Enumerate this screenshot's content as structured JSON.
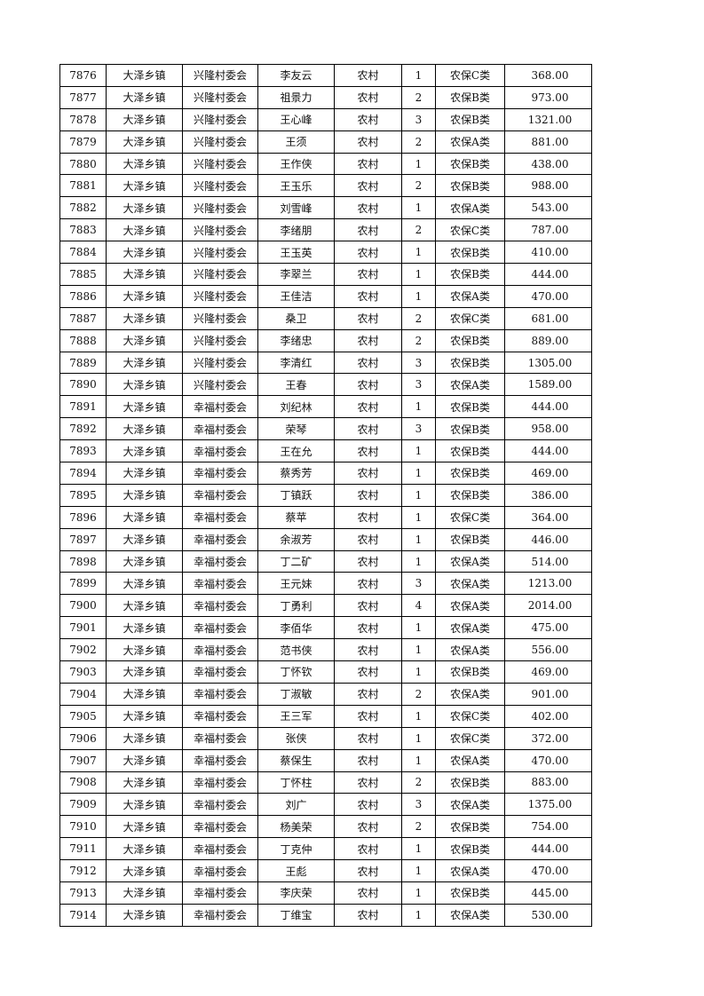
{
  "table": {
    "rows": [
      [
        "7876",
        "大泽乡镇",
        "兴隆村委会",
        "李友云",
        "农村",
        "1",
        "农保C类",
        "368.00"
      ],
      [
        "7877",
        "大泽乡镇",
        "兴隆村委会",
        "祖景力",
        "农村",
        "2",
        "农保B类",
        "973.00"
      ],
      [
        "7878",
        "大泽乡镇",
        "兴隆村委会",
        "王心峰",
        "农村",
        "3",
        "农保B类",
        "1321.00"
      ],
      [
        "7879",
        "大泽乡镇",
        "兴隆村委会",
        "王须",
        "农村",
        "2",
        "农保A类",
        "881.00"
      ],
      [
        "7880",
        "大泽乡镇",
        "兴隆村委会",
        "王作侠",
        "农村",
        "1",
        "农保B类",
        "438.00"
      ],
      [
        "7881",
        "大泽乡镇",
        "兴隆村委会",
        "王玉乐",
        "农村",
        "2",
        "农保B类",
        "988.00"
      ],
      [
        "7882",
        "大泽乡镇",
        "兴隆村委会",
        "刘雪峰",
        "农村",
        "1",
        "农保A类",
        "543.00"
      ],
      [
        "7883",
        "大泽乡镇",
        "兴隆村委会",
        "李绪朋",
        "农村",
        "2",
        "农保C类",
        "787.00"
      ],
      [
        "7884",
        "大泽乡镇",
        "兴隆村委会",
        "王玉英",
        "农村",
        "1",
        "农保B类",
        "410.00"
      ],
      [
        "7885",
        "大泽乡镇",
        "兴隆村委会",
        "李翠兰",
        "农村",
        "1",
        "农保B类",
        "444.00"
      ],
      [
        "7886",
        "大泽乡镇",
        "兴隆村委会",
        "王佳洁",
        "农村",
        "1",
        "农保A类",
        "470.00"
      ],
      [
        "7887",
        "大泽乡镇",
        "兴隆村委会",
        "桑卫",
        "农村",
        "2",
        "农保C类",
        "681.00"
      ],
      [
        "7888",
        "大泽乡镇",
        "兴隆村委会",
        "李绪忠",
        "农村",
        "2",
        "农保B类",
        "889.00"
      ],
      [
        "7889",
        "大泽乡镇",
        "兴隆村委会",
        "李清红",
        "农村",
        "3",
        "农保B类",
        "1305.00"
      ],
      [
        "7890",
        "大泽乡镇",
        "兴隆村委会",
        "王春",
        "农村",
        "3",
        "农保A类",
        "1589.00"
      ],
      [
        "7891",
        "大泽乡镇",
        "幸福村委会",
        "刘纪林",
        "农村",
        "1",
        "农保B类",
        "444.00"
      ],
      [
        "7892",
        "大泽乡镇",
        "幸福村委会",
        "荣琴",
        "农村",
        "3",
        "农保B类",
        "958.00"
      ],
      [
        "7893",
        "大泽乡镇",
        "幸福村委会",
        "王在允",
        "农村",
        "1",
        "农保B类",
        "444.00"
      ],
      [
        "7894",
        "大泽乡镇",
        "幸福村委会",
        "蔡秀芳",
        "农村",
        "1",
        "农保B类",
        "469.00"
      ],
      [
        "7895",
        "大泽乡镇",
        "幸福村委会",
        "丁镇跃",
        "农村",
        "1",
        "农保B类",
        "386.00"
      ],
      [
        "7896",
        "大泽乡镇",
        "幸福村委会",
        "蔡苹",
        "农村",
        "1",
        "农保C类",
        "364.00"
      ],
      [
        "7897",
        "大泽乡镇",
        "幸福村委会",
        "余淑芳",
        "农村",
        "1",
        "农保B类",
        "446.00"
      ],
      [
        "7898",
        "大泽乡镇",
        "幸福村委会",
        "丁二矿",
        "农村",
        "1",
        "农保A类",
        "514.00"
      ],
      [
        "7899",
        "大泽乡镇",
        "幸福村委会",
        "王元妹",
        "农村",
        "3",
        "农保A类",
        "1213.00"
      ],
      [
        "7900",
        "大泽乡镇",
        "幸福村委会",
        "丁勇利",
        "农村",
        "4",
        "农保A类",
        "2014.00"
      ],
      [
        "7901",
        "大泽乡镇",
        "幸福村委会",
        "李佰华",
        "农村",
        "1",
        "农保A类",
        "475.00"
      ],
      [
        "7902",
        "大泽乡镇",
        "幸福村委会",
        "范书侠",
        "农村",
        "1",
        "农保A类",
        "556.00"
      ],
      [
        "7903",
        "大泽乡镇",
        "幸福村委会",
        "丁怀钦",
        "农村",
        "1",
        "农保B类",
        "469.00"
      ],
      [
        "7904",
        "大泽乡镇",
        "幸福村委会",
        "丁淑敏",
        "农村",
        "2",
        "农保A类",
        "901.00"
      ],
      [
        "7905",
        "大泽乡镇",
        "幸福村委会",
        "王三军",
        "农村",
        "1",
        "农保C类",
        "402.00"
      ],
      [
        "7906",
        "大泽乡镇",
        "幸福村委会",
        "张侠",
        "农村",
        "1",
        "农保C类",
        "372.00"
      ],
      [
        "7907",
        "大泽乡镇",
        "幸福村委会",
        "蔡保生",
        "农村",
        "1",
        "农保A类",
        "470.00"
      ],
      [
        "7908",
        "大泽乡镇",
        "幸福村委会",
        "丁怀柱",
        "农村",
        "2",
        "农保B类",
        "883.00"
      ],
      [
        "7909",
        "大泽乡镇",
        "幸福村委会",
        "刘广",
        "农村",
        "3",
        "农保A类",
        "1375.00"
      ],
      [
        "7910",
        "大泽乡镇",
        "幸福村委会",
        "杨美荣",
        "农村",
        "2",
        "农保B类",
        "754.00"
      ],
      [
        "7911",
        "大泽乡镇",
        "幸福村委会",
        "丁克仲",
        "农村",
        "1",
        "农保B类",
        "444.00"
      ],
      [
        "7912",
        "大泽乡镇",
        "幸福村委会",
        "王彪",
        "农村",
        "1",
        "农保A类",
        "470.00"
      ],
      [
        "7913",
        "大泽乡镇",
        "幸福村委会",
        "李庆荣",
        "农村",
        "1",
        "农保B类",
        "445.00"
      ],
      [
        "7914",
        "大泽乡镇",
        "幸福村委会",
        "丁维宝",
        "农村",
        "1",
        "农保A类",
        "530.00"
      ]
    ]
  }
}
